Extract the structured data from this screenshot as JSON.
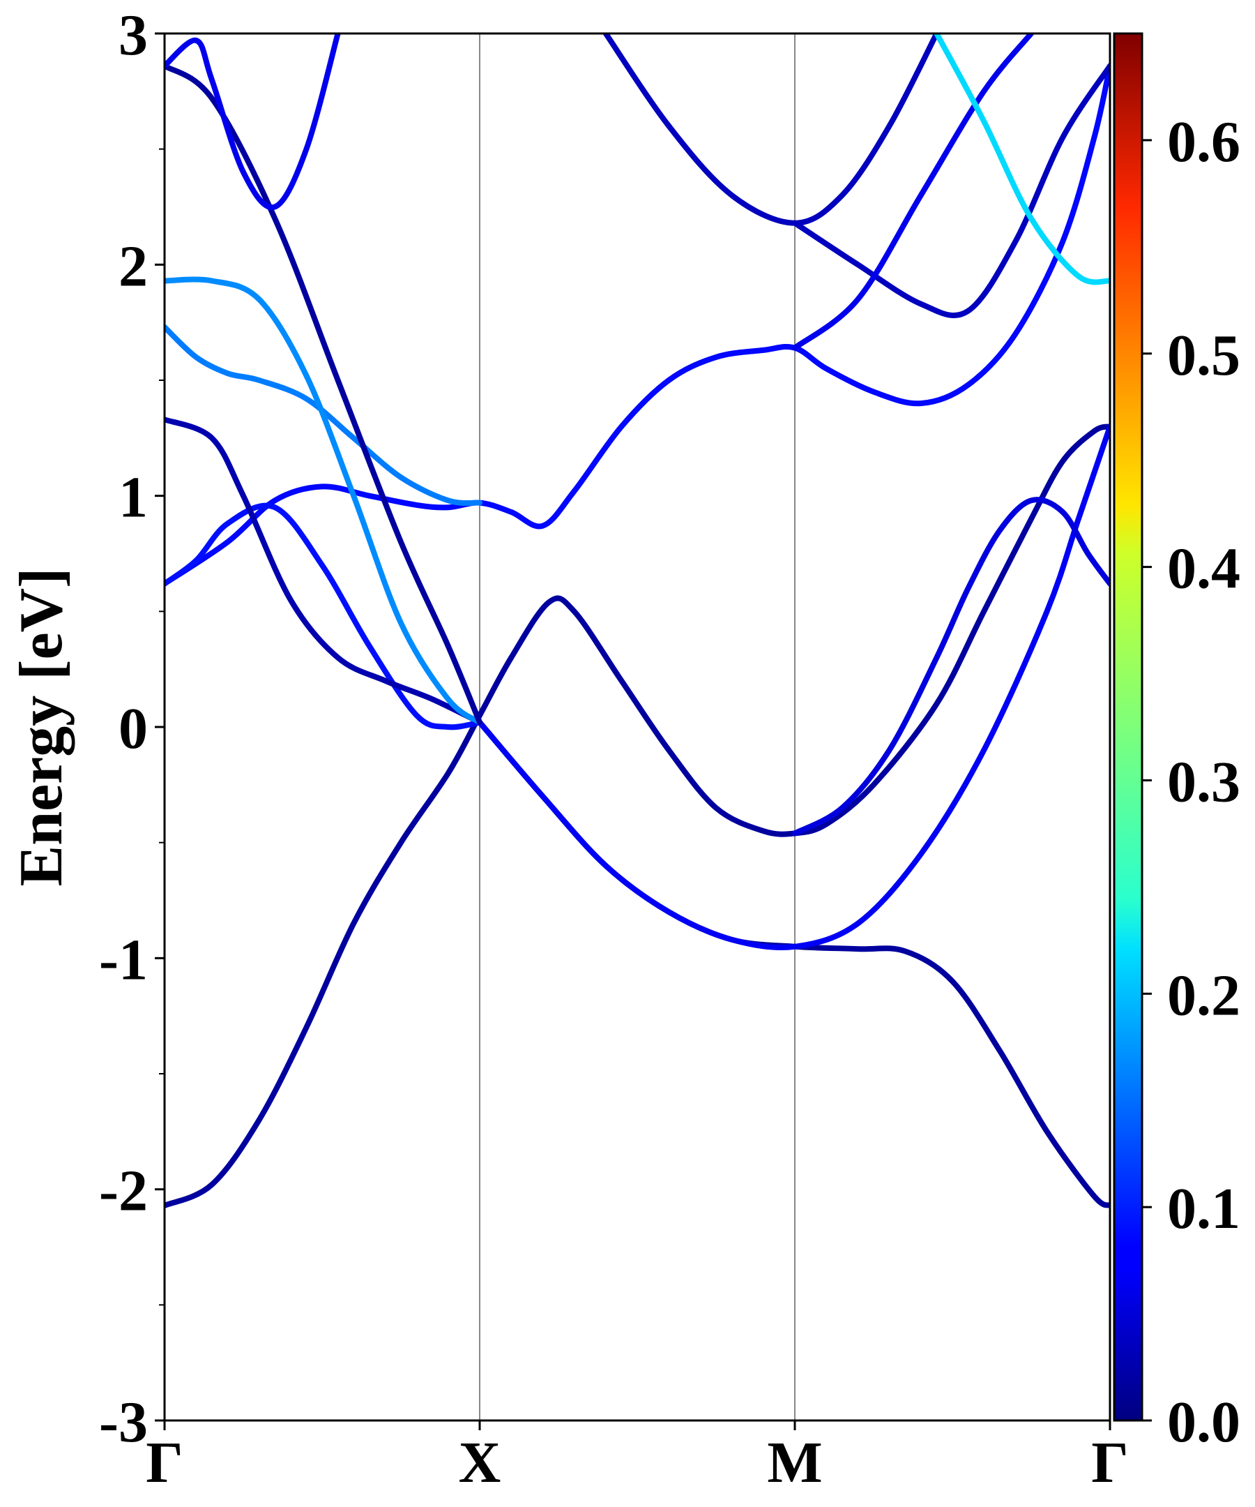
{
  "chart_data": {
    "type": "line",
    "title": "",
    "ylabel": "Energy [eV]",
    "xlabel": "",
    "ylim": [
      -3,
      3
    ],
    "x_range": [
      0,
      3
    ],
    "yticks": [
      {
        "value": 3,
        "label": "3"
      },
      {
        "value": 2,
        "label": "2"
      },
      {
        "value": 1,
        "label": "1"
      },
      {
        "value": 0,
        "label": "0"
      },
      {
        "value": -1,
        "label": "-1"
      },
      {
        "value": -2,
        "label": "-2"
      },
      {
        "value": -3,
        "label": "-3"
      }
    ],
    "kpoints": [
      {
        "label": "Γ",
        "x": 0
      },
      {
        "label": "X",
        "x": 1
      },
      {
        "label": "M",
        "x": 2
      },
      {
        "label": "Γ",
        "x": 3
      }
    ],
    "grid": false,
    "colorbar": {
      "colormap": "jet",
      "range": [
        0,
        0.65
      ],
      "ticks": [
        {
          "value": 0.0,
          "label": "0.0"
        },
        {
          "value": 0.1,
          "label": "0.1"
        },
        {
          "value": 0.2,
          "label": "0.2"
        },
        {
          "value": 0.3,
          "label": "0.3"
        },
        {
          "value": 0.4,
          "label": "0.4"
        },
        {
          "value": 0.5,
          "label": "0.5"
        },
        {
          "value": 0.6,
          "label": "0.6"
        }
      ]
    },
    "bands": [
      {
        "weight": 0.02,
        "points": [
          [
            0,
            -2.07
          ],
          [
            0.15,
            -1.98
          ],
          [
            0.3,
            -1.7
          ],
          [
            0.45,
            -1.3
          ],
          [
            0.6,
            -0.85
          ],
          [
            0.75,
            -0.5
          ],
          [
            0.9,
            -0.2
          ],
          [
            1,
            0.05
          ],
          [
            1.1,
            0.3
          ],
          [
            1.22,
            0.54
          ],
          [
            1.3,
            0.5
          ],
          [
            1.45,
            0.2
          ],
          [
            1.6,
            -0.1
          ],
          [
            1.75,
            -0.35
          ],
          [
            1.9,
            -0.45
          ],
          [
            2,
            -0.46
          ],
          [
            2.1,
            -0.42
          ],
          [
            2.25,
            -0.25
          ],
          [
            2.45,
            0.1
          ],
          [
            2.6,
            0.5
          ],
          [
            2.75,
            0.9
          ],
          [
            2.85,
            1.15
          ],
          [
            2.95,
            1.28
          ],
          [
            3,
            1.3
          ]
        ]
      },
      {
        "weight": 0.085,
        "points": [
          [
            0,
            0.62
          ],
          [
            0.2,
            0.8
          ],
          [
            0.35,
            0.98
          ],
          [
            0.5,
            1.04
          ],
          [
            0.65,
            1.0
          ],
          [
            0.8,
            0.96
          ],
          [
            0.9,
            0.95
          ],
          [
            1,
            0.97
          ],
          [
            1.1,
            0.93
          ],
          [
            1.2,
            0.87
          ],
          [
            1.3,
            1.02
          ],
          [
            1.45,
            1.3
          ],
          [
            1.6,
            1.5
          ],
          [
            1.75,
            1.6
          ],
          [
            1.9,
            1.63
          ],
          [
            2,
            1.64
          ],
          [
            2.1,
            1.55
          ],
          [
            2.25,
            1.45
          ],
          [
            2.4,
            1.4
          ],
          [
            2.55,
            1.48
          ],
          [
            2.7,
            1.7
          ],
          [
            2.85,
            2.1
          ],
          [
            2.95,
            2.55
          ],
          [
            3,
            2.86
          ]
        ]
      },
      {
        "weight": 0.09,
        "points": [
          [
            0,
            0.62
          ],
          [
            0.1,
            0.72
          ],
          [
            0.2,
            0.88
          ],
          [
            0.35,
            0.95
          ],
          [
            0.5,
            0.7
          ],
          [
            0.65,
            0.35
          ],
          [
            0.8,
            0.05
          ],
          [
            0.9,
            0.0
          ],
          [
            1,
            0.02
          ]
        ]
      },
      {
        "weight": 0.03,
        "points": [
          [
            0,
            1.33
          ],
          [
            0.15,
            1.25
          ],
          [
            0.25,
            1.0
          ],
          [
            0.4,
            0.55
          ],
          [
            0.55,
            0.3
          ],
          [
            0.7,
            0.2
          ],
          [
            0.85,
            0.12
          ],
          [
            1,
            0.02
          ]
        ]
      },
      {
        "weight": 0.02,
        "points": [
          [
            1,
            0.02
          ],
          [
            1.2,
            -0.3
          ],
          [
            1.4,
            -0.6
          ],
          [
            1.6,
            -0.8
          ],
          [
            1.8,
            -0.92
          ],
          [
            2,
            -0.95
          ],
          [
            2.2,
            -0.96
          ],
          [
            2.35,
            -0.97
          ],
          [
            2.5,
            -1.1
          ],
          [
            2.65,
            -1.4
          ],
          [
            2.8,
            -1.75
          ],
          [
            2.95,
            -2.03
          ],
          [
            3,
            -2.07
          ]
        ]
      },
      {
        "weight": 0.075,
        "points": [
          [
            1,
            0.02
          ],
          [
            1.2,
            -0.3
          ],
          [
            1.4,
            -0.6
          ],
          [
            1.6,
            -0.8
          ],
          [
            1.8,
            -0.92
          ],
          [
            2,
            -0.95
          ],
          [
            2.2,
            -0.85
          ],
          [
            2.4,
            -0.55
          ],
          [
            2.6,
            -0.1
          ],
          [
            2.8,
            0.5
          ],
          [
            2.9,
            0.9
          ],
          [
            3,
            1.3
          ]
        ]
      },
      {
        "weight": 0.06,
        "points": [
          [
            2,
            -0.46
          ],
          [
            2.15,
            -0.35
          ],
          [
            2.3,
            -0.1
          ],
          [
            2.45,
            0.3
          ],
          [
            2.55,
            0.6
          ],
          [
            2.65,
            0.85
          ],
          [
            2.75,
            0.98
          ],
          [
            2.85,
            0.93
          ],
          [
            2.93,
            0.75
          ],
          [
            3,
            0.62
          ]
        ]
      },
      {
        "weight": 0.16,
        "points": [
          [
            0,
            1.73
          ],
          [
            0.1,
            1.6
          ],
          [
            0.2,
            1.53
          ],
          [
            0.3,
            1.5
          ],
          [
            0.45,
            1.42
          ],
          [
            0.6,
            1.25
          ],
          [
            0.75,
            1.08
          ],
          [
            0.9,
            0.98
          ],
          [
            1,
            0.97
          ]
        ]
      },
      {
        "weight": 0.17,
        "points": [
          [
            0,
            1.93
          ],
          [
            0.15,
            1.93
          ],
          [
            0.3,
            1.85
          ],
          [
            0.45,
            1.52
          ],
          [
            0.6,
            1.0
          ],
          [
            0.75,
            0.45
          ],
          [
            0.9,
            0.12
          ],
          [
            1,
            0.02
          ]
        ]
      },
      {
        "weight": 0.02,
        "points": [
          [
            0,
            2.86
          ],
          [
            0.15,
            2.72
          ],
          [
            0.35,
            2.2
          ],
          [
            0.55,
            1.5
          ],
          [
            0.75,
            0.8
          ],
          [
            0.9,
            0.35
          ],
          [
            1,
            0.02
          ]
        ]
      },
      {
        "weight": 0.07,
        "points": [
          [
            0,
            2.86
          ],
          [
            0.1,
            2.97
          ],
          [
            0.15,
            2.8
          ],
          [
            0.25,
            2.4
          ],
          [
            0.35,
            2.25
          ],
          [
            0.45,
            2.5
          ],
          [
            0.55,
            3.0
          ]
        ]
      },
      {
        "weight": 0.04,
        "points": [
          [
            1.4,
            3.0
          ],
          [
            1.6,
            2.6
          ],
          [
            1.8,
            2.3
          ],
          [
            2,
            2.18
          ],
          [
            2.15,
            2.3
          ],
          [
            2.3,
            2.6
          ],
          [
            2.45,
            3.0
          ]
        ]
      },
      {
        "weight": 0.04,
        "points": [
          [
            2,
            2.18
          ],
          [
            2.2,
            2.0
          ],
          [
            2.4,
            1.83
          ],
          [
            2.55,
            1.8
          ],
          [
            2.7,
            2.1
          ],
          [
            2.85,
            2.55
          ],
          [
            3,
            2.86
          ]
        ]
      },
      {
        "weight": 0.07,
        "points": [
          [
            2,
            1.64
          ],
          [
            2.2,
            1.85
          ],
          [
            2.4,
            2.3
          ],
          [
            2.6,
            2.75
          ],
          [
            2.75,
            3.0
          ]
        ]
      },
      {
        "weight": 0.22,
        "points": [
          [
            2.45,
            3.0
          ],
          [
            2.6,
            2.62
          ],
          [
            2.75,
            2.2
          ],
          [
            2.9,
            1.95
          ],
          [
            3,
            1.93
          ]
        ]
      }
    ]
  }
}
